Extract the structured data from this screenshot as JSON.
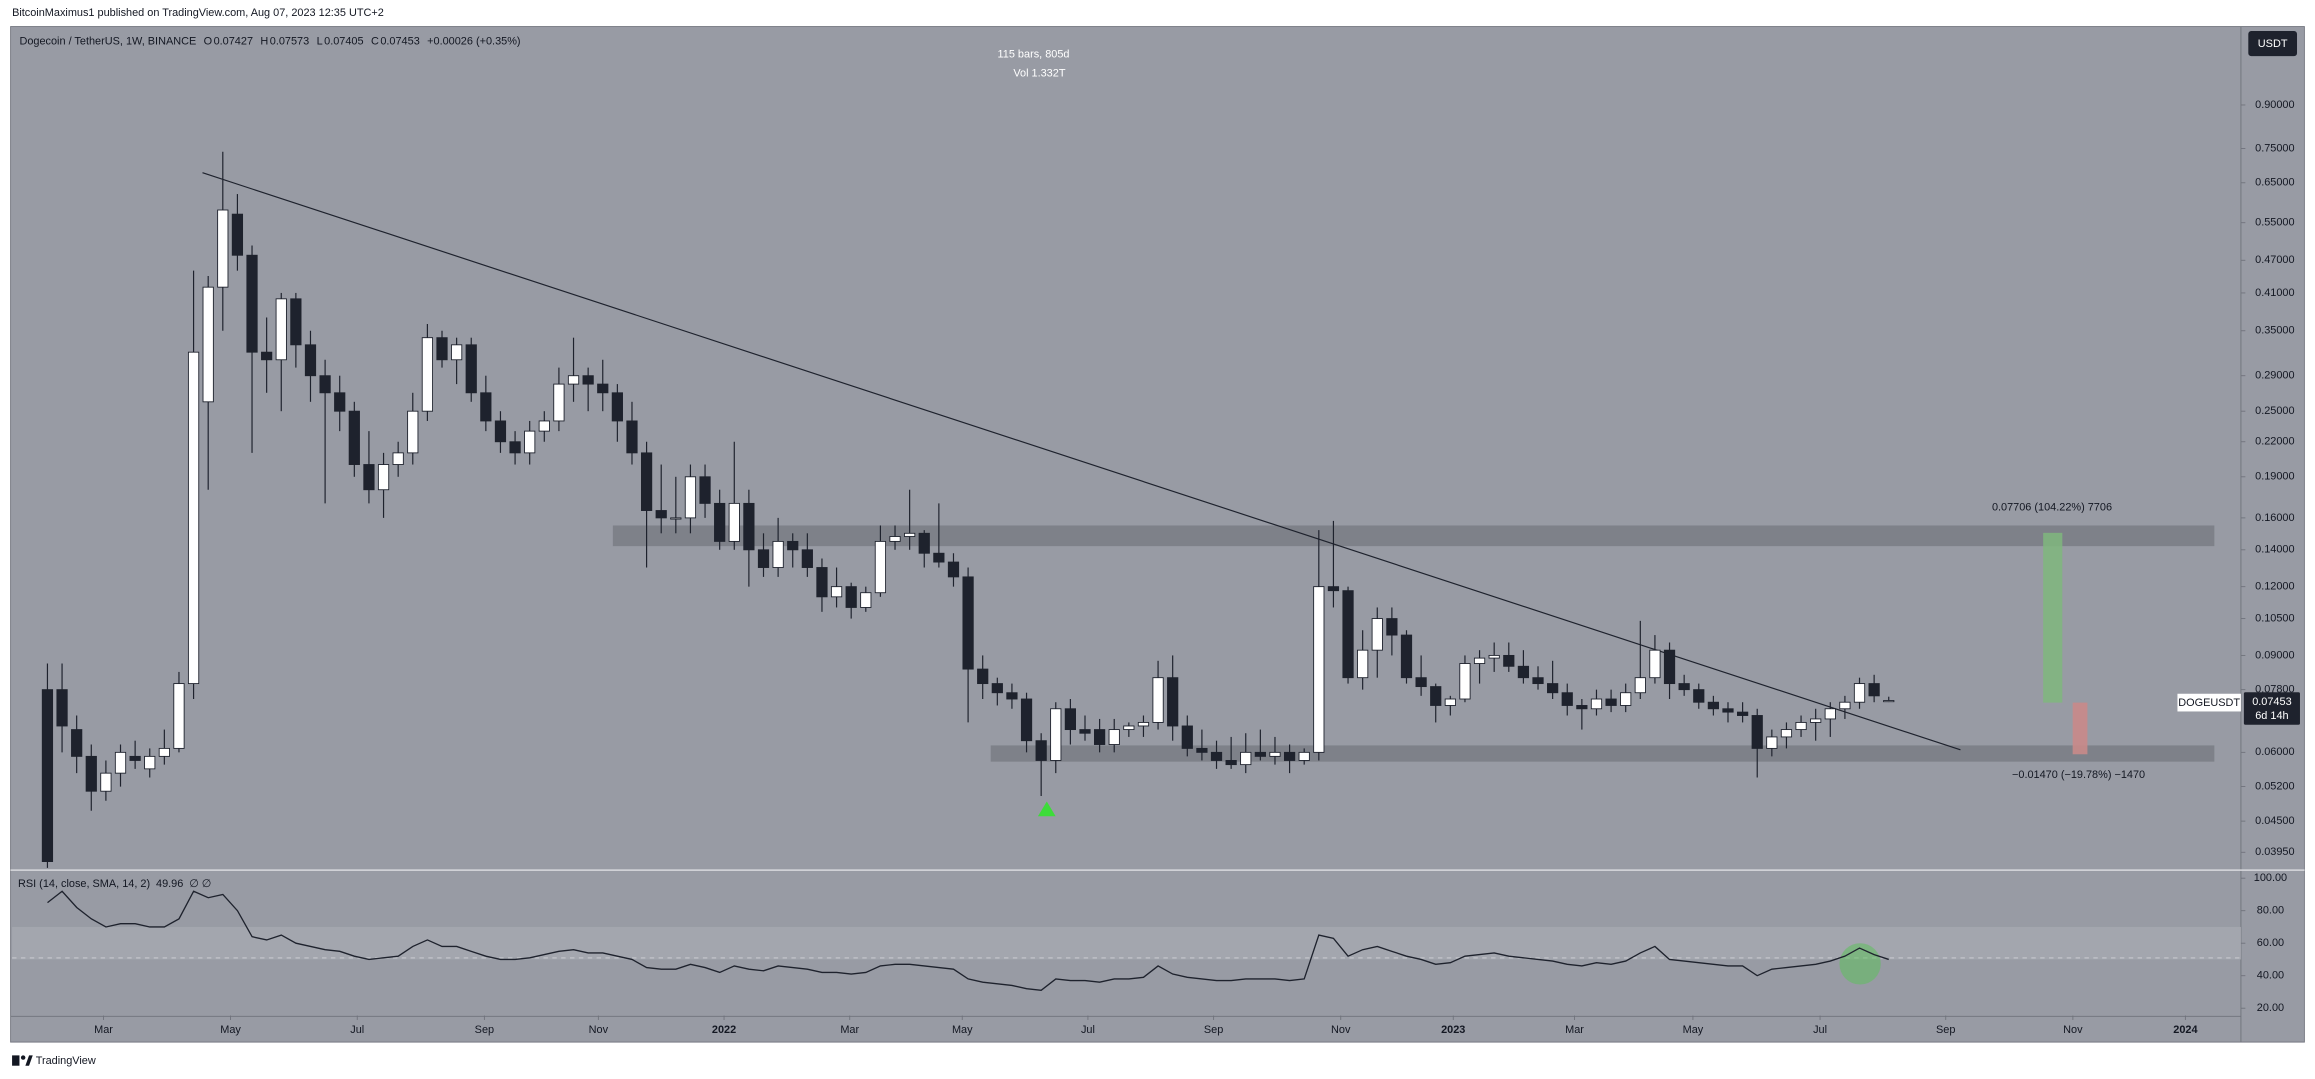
{
  "header": {
    "published": "BitcoinMaximus1 published on TradingView.com, Aug 07, 2023 12:35 UTC+2",
    "currency": "USDT",
    "footer": "TradingView"
  },
  "chart_data": {
    "type": "candlestick",
    "symbol": "Dogecoin / TetherUS, 1W, BINANCE",
    "ohlc_labels": [
      "O",
      "H",
      "L",
      "C"
    ],
    "ohlc_values": [
      0.07427,
      0.07573,
      0.07405,
      0.07453
    ],
    "change": "+0.00026 (+0.35%)",
    "info": [
      "115 bars, 805d",
      "Vol 1.332T"
    ],
    "price_label": {
      "ticker": "DOGEUSDT",
      "countdown": "6d 14h"
    },
    "annotations": {
      "target_up": "0.07706 (104.22%) 7706",
      "target_down": "−0.01470 (−19.78%) −1470"
    },
    "up_color": "#ffffff",
    "down_color": "#1e222d",
    "log_scale": true,
    "grid": false,
    "categories": [
      null,
      null,
      null,
      null,
      null,
      null,
      null,
      null,
      null,
      null,
      null,
      null,
      null,
      null,
      null,
      null,
      null,
      null,
      null,
      null,
      null,
      null,
      null,
      null,
      null,
      null,
      null,
      null,
      null,
      null,
      null,
      null,
      null,
      null,
      null,
      null,
      null,
      null,
      null,
      null,
      null,
      null,
      null,
      null,
      null,
      null,
      null,
      null,
      null,
      null,
      null,
      null,
      null,
      null,
      null,
      null,
      null,
      null,
      null,
      null,
      null,
      null,
      null,
      null,
      null,
      null,
      null,
      null,
      null,
      null,
      null,
      null,
      null,
      null,
      null,
      null,
      null,
      null,
      null,
      null,
      null,
      null,
      null,
      null,
      null,
      null,
      null,
      null,
      null,
      null,
      null,
      null,
      null,
      null,
      null,
      null,
      null,
      null,
      null,
      null,
      null,
      null,
      null,
      null,
      null,
      null,
      null,
      null,
      null,
      null,
      null,
      null,
      null,
      null,
      null,
      null,
      null,
      null,
      null,
      null,
      null,
      null,
      null,
      null,
      null,
      null,
      null
    ],
    "open": [
      0.078,
      0.078,
      0.066,
      0.059,
      0.051,
      0.055,
      0.059,
      0.056,
      0.059,
      0.061,
      0.08,
      0.26,
      0.42,
      0.57,
      0.48,
      0.32,
      0.31,
      0.4,
      0.33,
      0.29,
      0.27,
      0.25,
      0.2,
      0.18,
      0.2,
      0.21,
      0.25,
      0.34,
      0.31,
      0.33,
      0.27,
      0.24,
      0.22,
      0.21,
      0.23,
      0.24,
      0.28,
      0.29,
      0.28,
      0.27,
      0.24,
      0.21,
      0.165,
      0.16,
      0.16,
      0.19,
      0.17,
      0.145,
      0.17,
      0.14,
      0.13,
      0.145,
      0.14,
      0.13,
      0.115,
      0.12,
      0.11,
      0.117,
      0.145,
      0.148,
      0.15,
      0.138,
      0.133,
      0.125,
      0.085,
      0.08,
      0.077,
      0.075,
      0.063,
      0.058,
      0.072,
      0.066,
      0.066,
      0.062,
      0.066,
      0.067,
      0.068,
      0.082,
      0.067,
      0.061,
      0.06,
      0.058,
      0.057,
      0.06,
      0.059,
      0.06,
      0.058,
      0.06,
      0.12,
      0.118,
      0.082,
      0.092,
      0.105,
      0.098,
      0.082,
      0.079,
      0.073,
      0.075,
      0.087,
      0.089,
      0.09,
      0.086,
      0.082,
      0.08,
      0.077,
      0.073,
      0.072,
      0.075,
      0.073,
      0.077,
      0.082,
      0.092,
      0.08,
      0.078,
      0.074,
      0.072,
      0.071,
      0.07,
      0.061,
      0.064,
      0.066,
      0.068,
      0.069,
      0.072,
      0.074,
      0.08,
      0.07427
    ],
    "high": [
      0.087,
      0.087,
      0.07,
      0.062,
      0.058,
      0.062,
      0.063,
      0.061,
      0.066,
      0.084,
      0.45,
      0.44,
      0.74,
      0.62,
      0.5,
      0.37,
      0.41,
      0.41,
      0.35,
      0.31,
      0.29,
      0.26,
      0.23,
      0.21,
      0.22,
      0.27,
      0.36,
      0.35,
      0.34,
      0.34,
      0.29,
      0.25,
      0.23,
      0.24,
      0.25,
      0.3,
      0.34,
      0.3,
      0.31,
      0.28,
      0.26,
      0.22,
      0.2,
      0.19,
      0.2,
      0.2,
      0.18,
      0.22,
      0.18,
      0.15,
      0.16,
      0.15,
      0.15,
      0.135,
      0.13,
      0.122,
      0.12,
      0.155,
      0.155,
      0.18,
      0.152,
      0.17,
      0.138,
      0.13,
      0.09,
      0.082,
      0.08,
      0.077,
      0.065,
      0.074,
      0.075,
      0.07,
      0.069,
      0.069,
      0.068,
      0.07,
      0.088,
      0.09,
      0.07,
      0.066,
      0.063,
      0.064,
      0.065,
      0.066,
      0.064,
      0.062,
      0.061,
      0.152,
      0.158,
      0.12,
      0.1,
      0.11,
      0.11,
      0.1,
      0.09,
      0.08,
      0.076,
      0.09,
      0.092,
      0.095,
      0.095,
      0.092,
      0.086,
      0.088,
      0.08,
      0.075,
      0.078,
      0.078,
      0.08,
      0.104,
      0.098,
      0.095,
      0.083,
      0.08,
      0.076,
      0.074,
      0.074,
      0.072,
      0.066,
      0.068,
      0.07,
      0.072,
      0.074,
      0.076,
      0.082,
      0.083,
      0.07573
    ],
    "low": [
      0.037,
      0.06,
      0.055,
      0.047,
      0.049,
      0.052,
      0.056,
      0.054,
      0.057,
      0.06,
      0.075,
      0.18,
      0.35,
      0.45,
      0.21,
      0.27,
      0.25,
      0.3,
      0.26,
      0.17,
      0.23,
      0.19,
      0.17,
      0.16,
      0.19,
      0.2,
      0.24,
      0.3,
      0.28,
      0.26,
      0.23,
      0.21,
      0.2,
      0.2,
      0.22,
      0.23,
      0.26,
      0.25,
      0.25,
      0.22,
      0.2,
      0.13,
      0.15,
      0.15,
      0.15,
      0.16,
      0.14,
      0.14,
      0.12,
      0.125,
      0.125,
      0.13,
      0.125,
      0.108,
      0.11,
      0.105,
      0.108,
      0.115,
      0.14,
      0.14,
      0.13,
      0.13,
      0.12,
      0.068,
      0.075,
      0.073,
      0.072,
      0.06,
      0.05,
      0.055,
      0.062,
      0.063,
      0.06,
      0.06,
      0.064,
      0.064,
      0.066,
      0.063,
      0.059,
      0.058,
      0.056,
      0.056,
      0.055,
      0.058,
      0.057,
      0.055,
      0.057,
      0.058,
      0.11,
      0.08,
      0.078,
      0.082,
      0.09,
      0.08,
      0.076,
      0.068,
      0.07,
      0.074,
      0.08,
      0.084,
      0.084,
      0.08,
      0.078,
      0.075,
      0.07,
      0.066,
      0.07,
      0.071,
      0.071,
      0.075,
      0.08,
      0.075,
      0.076,
      0.072,
      0.07,
      0.068,
      0.068,
      0.054,
      0.059,
      0.061,
      0.064,
      0.063,
      0.064,
      0.069,
      0.072,
      0.074,
      0.07405
    ],
    "close": [
      0.038,
      0.067,
      0.059,
      0.051,
      0.055,
      0.06,
      0.058,
      0.059,
      0.061,
      0.08,
      0.32,
      0.42,
      0.58,
      0.48,
      0.32,
      0.31,
      0.4,
      0.33,
      0.29,
      0.27,
      0.25,
      0.2,
      0.18,
      0.2,
      0.21,
      0.25,
      0.34,
      0.31,
      0.33,
      0.27,
      0.24,
      0.22,
      0.21,
      0.23,
      0.24,
      0.28,
      0.29,
      0.28,
      0.27,
      0.24,
      0.21,
      0.165,
      0.16,
      0.16,
      0.19,
      0.17,
      0.145,
      0.17,
      0.14,
      0.13,
      0.145,
      0.14,
      0.13,
      0.115,
      0.12,
      0.11,
      0.117,
      0.145,
      0.148,
      0.15,
      0.138,
      0.133,
      0.125,
      0.085,
      0.08,
      0.077,
      0.075,
      0.063,
      0.058,
      0.072,
      0.066,
      0.065,
      0.062,
      0.066,
      0.067,
      0.068,
      0.082,
      0.067,
      0.061,
      0.06,
      0.058,
      0.057,
      0.06,
      0.059,
      0.06,
      0.058,
      0.06,
      0.12,
      0.118,
      0.082,
      0.092,
      0.105,
      0.098,
      0.082,
      0.079,
      0.073,
      0.075,
      0.087,
      0.089,
      0.09,
      0.086,
      0.082,
      0.08,
      0.077,
      0.073,
      0.072,
      0.075,
      0.073,
      0.077,
      0.082,
      0.092,
      0.08,
      0.078,
      0.074,
      0.072,
      0.071,
      0.07,
      0.061,
      0.064,
      0.066,
      0.068,
      0.069,
      0.072,
      0.074,
      0.08,
      0.076,
      0.07453
    ],
    "ylim": [
      0.037,
      1.234
    ],
    "yticks": [
      {
        "value": 0.9,
        "label": "0.90000"
      },
      {
        "value": 0.75,
        "label": "0.75000"
      },
      {
        "value": 0.65,
        "label": "0.65000"
      },
      {
        "value": 0.55,
        "label": "0.55000"
      },
      {
        "value": 0.47,
        "label": "0.47000"
      },
      {
        "value": 0.41,
        "label": "0.41000"
      },
      {
        "value": 0.35,
        "label": "0.35000"
      },
      {
        "value": 0.29,
        "label": "0.29000"
      },
      {
        "value": 0.25,
        "label": "0.25000"
      },
      {
        "value": 0.22,
        "label": "0.22000"
      },
      {
        "value": 0.19,
        "label": "0.19000"
      },
      {
        "value": 0.16,
        "label": "0.16000"
      },
      {
        "value": 0.14,
        "label": "0.14000"
      },
      {
        "value": 0.12,
        "label": "0.12000"
      },
      {
        "value": 0.105,
        "label": "0.10500"
      },
      {
        "value": 0.09,
        "label": "0.09000"
      },
      {
        "value": 0.078,
        "label": "0.07800"
      },
      {
        "value": 0.06,
        "label": "0.06000"
      },
      {
        "value": 0.052,
        "label": "0.05200"
      },
      {
        "value": 0.045,
        "label": "0.04500"
      },
      {
        "value": 0.0395,
        "label": "0.03950"
      }
    ],
    "xlim": [
      -2.42,
      150.1
    ],
    "xticks": [
      {
        "value": 3.84,
        "label": "Mar"
      },
      {
        "value": 12.53,
        "label": "May"
      },
      {
        "value": 21.2,
        "label": "Jul"
      },
      {
        "value": 29.9,
        "label": "Sep"
      },
      {
        "value": 37.7,
        "label": "Nov"
      },
      {
        "value": 46.3,
        "label": "2022"
      },
      {
        "value": 54.9,
        "label": "Mar"
      },
      {
        "value": 62.6,
        "label": "May"
      },
      {
        "value": 71.2,
        "label": "Jul"
      },
      {
        "value": 79.8,
        "label": "Sep"
      },
      {
        "value": 88.5,
        "label": "Nov"
      },
      {
        "value": 96.2,
        "label": "2023"
      },
      {
        "value": 104.5,
        "label": "Mar"
      },
      {
        "value": 112.6,
        "label": "May"
      },
      {
        "value": 121.3,
        "label": "Jul"
      },
      {
        "value": 129.9,
        "label": "Sep"
      },
      {
        "value": 138.6,
        "label": "Nov"
      },
      {
        "value": 146.3,
        "label": "2024"
      }
    ],
    "rsi": {
      "label": "RSI (14, close, SMA, 14, 2)",
      "value": 49.96,
      "extra": "∅ ∅",
      "color": "#1e222d",
      "values": [
        85,
        92,
        82,
        75,
        70,
        72,
        72,
        70,
        70,
        75,
        92,
        88,
        90,
        80,
        64,
        62,
        65,
        60,
        58,
        56,
        55,
        52,
        50,
        51,
        52,
        58,
        62,
        58,
        58,
        55,
        52,
        50,
        50,
        51,
        53,
        55,
        56,
        54,
        54,
        52,
        50,
        45,
        44,
        44,
        47,
        45,
        42,
        46,
        44,
        43,
        46,
        45,
        44,
        42,
        42,
        41,
        42,
        46,
        47,
        47,
        46,
        45,
        44,
        38,
        36,
        35,
        34,
        32,
        31,
        38,
        37,
        37,
        36,
        38,
        38,
        39,
        46,
        41,
        39,
        38,
        37,
        37,
        38,
        38,
        38,
        37,
        38,
        65,
        63,
        52,
        56,
        58,
        55,
        52,
        50,
        47,
        48,
        52,
        53,
        54,
        52,
        51,
        50,
        49,
        47,
        46,
        48,
        47,
        49,
        54,
        58,
        50,
        49,
        48,
        47,
        46,
        46,
        40,
        44,
        45,
        46,
        47,
        49,
        52,
        57,
        53,
        50
      ],
      "ylim": [
        15.5,
        104.5
      ],
      "yticks": [
        {
          "value": 100,
          "label": "100.00"
        },
        {
          "value": 80,
          "label": "80.00"
        },
        {
          "value": 60,
          "label": "60.00"
        },
        {
          "value": 40,
          "label": "40.00"
        },
        {
          "value": 20,
          "label": "20.00"
        }
      ]
    }
  }
}
